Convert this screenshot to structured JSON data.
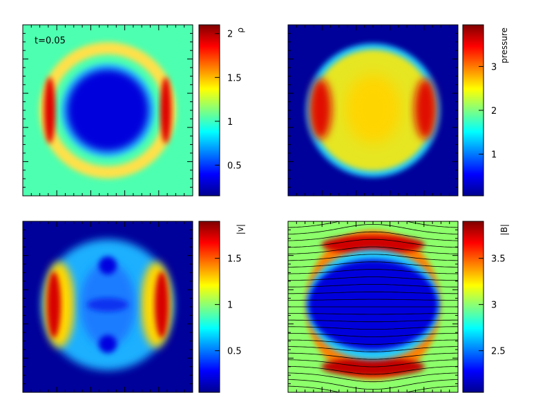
{
  "annotation": "t=0.05",
  "chart_data": [
    {
      "type": "heatmap",
      "panel": "top-left",
      "colorbar_label": "ρ",
      "colorbar_ticks": [
        {
          "value": 0.5,
          "label": "0.5"
        },
        {
          "value": 1.0,
          "label": "1"
        },
        {
          "value": 1.5,
          "label": "1.5"
        },
        {
          "value": 2.0,
          "label": "2"
        }
      ],
      "range": [
        0.15,
        2.1
      ],
      "colormap": "jet",
      "background_value": 1.0
    },
    {
      "type": "heatmap",
      "panel": "top-right",
      "colorbar_label": "pressure",
      "colorbar_ticks": [
        {
          "value": 1,
          "label": "1"
        },
        {
          "value": 2,
          "label": "2"
        },
        {
          "value": 3,
          "label": "3"
        }
      ],
      "range": [
        0.05,
        3.95
      ],
      "colormap": "jet",
      "background_value": 0.1
    },
    {
      "type": "heatmap",
      "panel": "bottom-left",
      "colorbar_label": "|v|",
      "colorbar_ticks": [
        {
          "value": 0.5,
          "label": "0.5"
        },
        {
          "value": 1.0,
          "label": "1"
        },
        {
          "value": 1.5,
          "label": "1.5"
        }
      ],
      "range": [
        0.05,
        1.9
      ],
      "colormap": "jet",
      "background_value": 0.0
    },
    {
      "type": "heatmap",
      "panel": "bottom-right",
      "colorbar_label": "|B|",
      "colorbar_ticks": [
        {
          "value": 2.5,
          "label": "2.5"
        },
        {
          "value": 3.0,
          "label": "3"
        },
        {
          "value": 3.5,
          "label": "3.5"
        }
      ],
      "range": [
        2.05,
        3.9
      ],
      "colormap": "jet",
      "background_value": 2.83,
      "field_lines": true
    }
  ]
}
